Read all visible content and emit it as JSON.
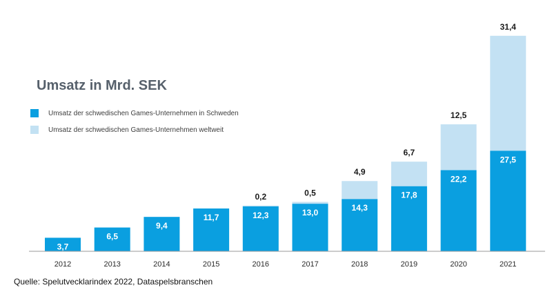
{
  "colors": {
    "domestic": "#0a9fe0",
    "worldwide": "#c3e1f3"
  },
  "chart_data": {
    "type": "bar",
    "stacked": true,
    "title": "Umsatz in Mrd. SEK",
    "categories": [
      "2012",
      "2013",
      "2014",
      "2015",
      "2016",
      "2017",
      "2018",
      "2019",
      "2020",
      "2021"
    ],
    "series": [
      {
        "name": "Umsatz der schwedischen Games-Unternehmen in Schweden",
        "values": [
          3.7,
          6.5,
          9.4,
          11.7,
          12.3,
          13.0,
          14.3,
          17.8,
          22.2,
          27.5
        ],
        "labels": [
          "3,7",
          "6,5",
          "9,4",
          "11,7",
          "12,3",
          "13,0",
          "14,3",
          "17,8",
          "22,2",
          "27,5"
        ]
      },
      {
        "name": "Umsatz der schwedischen Games-Unternehmen weltweit",
        "values": [
          null,
          null,
          null,
          null,
          0.2,
          0.5,
          4.9,
          6.7,
          12.5,
          31.4
        ],
        "labels": [
          "",
          "",
          "",
          "",
          "0,2",
          "0,5",
          "4,9",
          "6,7",
          "12,5",
          "31,4"
        ]
      }
    ],
    "legend_position": "top-left",
    "grid": false,
    "ylim": [
      0,
      60
    ],
    "source": "Quelle: Spelutvecklarindex 2022, Dataspelsbranschen"
  }
}
